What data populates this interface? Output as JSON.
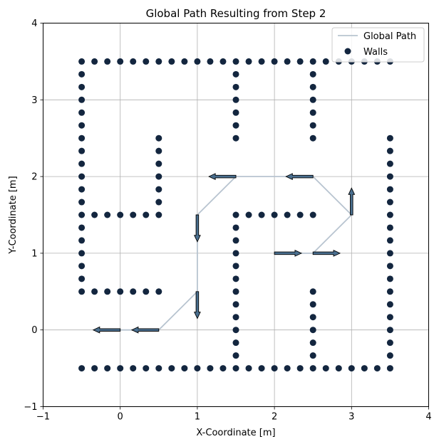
{
  "chart_data": {
    "type": "scatter",
    "title": "Global Path Resulting from Step 2",
    "xlabel": "X-Coordinate [m]",
    "ylabel": "Y-Coordinate [m]",
    "xlim": [
      -1,
      4
    ],
    "ylim": [
      -1,
      4
    ],
    "xticks": [
      -1,
      0,
      1,
      2,
      3,
      4
    ],
    "yticks": [
      -1,
      0,
      1,
      2,
      3,
      4
    ],
    "xtick_labels": [
      "−1",
      "0",
      "1",
      "2",
      "3",
      "4"
    ],
    "ytick_labels": [
      "−1",
      "0",
      "1",
      "2",
      "3",
      "4"
    ],
    "grid": true,
    "legend": {
      "position": "top-right",
      "entries": [
        {
          "label": "Global Path",
          "kind": "line",
          "color": "#b8c4d0"
        },
        {
          "label": "Walls",
          "kind": "marker",
          "color": "#13263f"
        }
      ]
    },
    "series": [
      {
        "name": "Global Path",
        "kind": "line",
        "color": "#b8c4d0",
        "points": [
          [
            0,
            0
          ],
          [
            0.5,
            0
          ],
          [
            1,
            0.5
          ],
          [
            1,
            1.5
          ],
          [
            1.5,
            2
          ],
          [
            2.5,
            2
          ],
          [
            3,
            1.5
          ],
          [
            2.5,
            1
          ],
          [
            2,
            1
          ]
        ]
      },
      {
        "name": "Walls",
        "kind": "scatter",
        "color": "#13263f",
        "segments": [
          {
            "axis": "y",
            "fixed": 3.5,
            "from": -0.5,
            "to": 3.5
          },
          {
            "axis": "y",
            "fixed": -0.5,
            "from": -0.5,
            "to": 3.5
          },
          {
            "axis": "x",
            "fixed": -0.5,
            "from": 0.5,
            "to": 3.5
          },
          {
            "axis": "y",
            "fixed": 1.5,
            "from": -0.5,
            "to": 0.5
          },
          {
            "axis": "y",
            "fixed": 0.5,
            "from": -0.5,
            "to": 0.5
          },
          {
            "axis": "x",
            "fixed": 0.5,
            "from": 1.5,
            "to": 2.5
          },
          {
            "axis": "x",
            "fixed": 1.5,
            "from": 2.5,
            "to": 3.5
          },
          {
            "axis": "x",
            "fixed": 2.5,
            "from": 2.5,
            "to": 3.5
          },
          {
            "axis": "x",
            "fixed": 1.5,
            "from": -0.5,
            "to": 1.5
          },
          {
            "axis": "y",
            "fixed": 1.5,
            "from": 1.5,
            "to": 2.5
          },
          {
            "axis": "x",
            "fixed": 2.5,
            "from": -0.5,
            "to": 0.5
          },
          {
            "axis": "x",
            "fixed": 3.5,
            "from": -0.5,
            "to": 2.5
          }
        ]
      }
    ],
    "arrows": [
      {
        "from": [
          0.0,
          0.0
        ],
        "to": [
          -0.35,
          0.0
        ]
      },
      {
        "from": [
          0.5,
          0.0
        ],
        "to": [
          0.15,
          0.0
        ]
      },
      {
        "from": [
          1.0,
          0.5
        ],
        "to": [
          1.0,
          0.15
        ]
      },
      {
        "from": [
          1.0,
          1.5
        ],
        "to": [
          1.0,
          1.15
        ]
      },
      {
        "from": [
          1.5,
          2.0
        ],
        "to": [
          1.15,
          2.0
        ]
      },
      {
        "from": [
          2.5,
          2.0
        ],
        "to": [
          2.15,
          2.0
        ]
      },
      {
        "from": [
          3.0,
          1.5
        ],
        "to": [
          3.0,
          1.85
        ]
      },
      {
        "from": [
          2.5,
          1.0
        ],
        "to": [
          2.85,
          1.0
        ]
      },
      {
        "from": [
          2.0,
          1.0
        ],
        "to": [
          2.35,
          1.0
        ]
      }
    ]
  }
}
